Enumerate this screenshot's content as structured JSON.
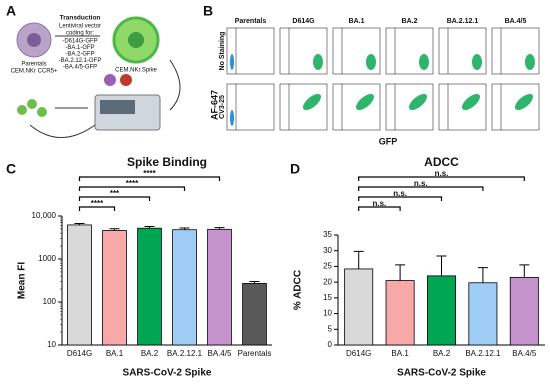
{
  "panel_labels": [
    "A",
    "B",
    "C",
    "D"
  ],
  "panel_a": {
    "transduction": "Transduction",
    "vector": [
      "Lentiviral vector",
      "coding for:"
    ],
    "constructs": [
      "-D614G-GFP",
      "-BA.1-GFP",
      "-BA.2-GFP",
      "-BA.2.12.1-GFP",
      "-BA.4/5-GFP"
    ],
    "parental_cell": [
      "Parentals",
      "CEM.NKr CCR5+"
    ],
    "spike_cell": "CEM.NKr.Spike"
  },
  "panel_b": {
    "columns": [
      "Parentals",
      "D614G",
      "BA.1",
      "BA.2",
      "BA.2.12.1",
      "BA.4/5"
    ],
    "rows": [
      "No Staining",
      "CV3-25"
    ],
    "y_label": "AF-647",
    "x_label": "GFP"
  },
  "chart_data": [
    {
      "type": "bar",
      "title": "Spike Binding",
      "x_label": "SARS-CoV-2 Spike",
      "y_label": "Mean FI",
      "log_scale": true,
      "categories": [
        "D614G",
        "BA.1",
        "BA.2",
        "BA.2.12.1",
        "BA.4/5",
        "Parentals"
      ],
      "values": [
        6200,
        4600,
        5200,
        4800,
        4900,
        270
      ],
      "errors": [
        500,
        450,
        500,
        450,
        450,
        30
      ],
      "colors": [
        "#d9d9d9",
        "#f7a8a8",
        "#00a651",
        "#9fcdf5",
        "#c593cc",
        "#595959"
      ],
      "ylim": [
        10,
        10000
      ],
      "yticks": [
        10,
        100,
        1000,
        {
          "value": 10000,
          "label": "10,000"
        }
      ],
      "significance": [
        {
          "label": "****",
          "to": "BA.4/5"
        },
        {
          "label": "****",
          "to": "BA.2.12.1"
        },
        {
          "label": "***",
          "to": "BA.2"
        },
        {
          "label": "****",
          "to": "BA.1"
        }
      ]
    },
    {
      "type": "bar",
      "title": "ADCC",
      "x_label": "SARS-CoV-2 Spike",
      "y_label": "% ADCC",
      "log_scale": false,
      "categories": [
        "D614G",
        "BA.1",
        "BA.2",
        "BA.2.12.1",
        "BA.4/5"
      ],
      "values": [
        24.2,
        20.5,
        22,
        19.8,
        21.5
      ],
      "errors": [
        5.6,
        5,
        6.3,
        4.8,
        4
      ],
      "colors": [
        "#d9d9d9",
        "#f7a8a8",
        "#00a651",
        "#9fcdf5",
        "#c593cc"
      ],
      "ylim": [
        0,
        35
      ],
      "yticks": [
        0,
        5,
        10,
        15,
        20,
        25,
        30,
        35
      ],
      "significance": [
        {
          "label": "n.s.",
          "to": "BA.4/5"
        },
        {
          "label": "n.s.",
          "to": "BA.2.12.1"
        },
        {
          "label": "n.s.",
          "to": "BA.2"
        },
        {
          "label": "n.s.",
          "to": "BA.1"
        }
      ]
    }
  ]
}
